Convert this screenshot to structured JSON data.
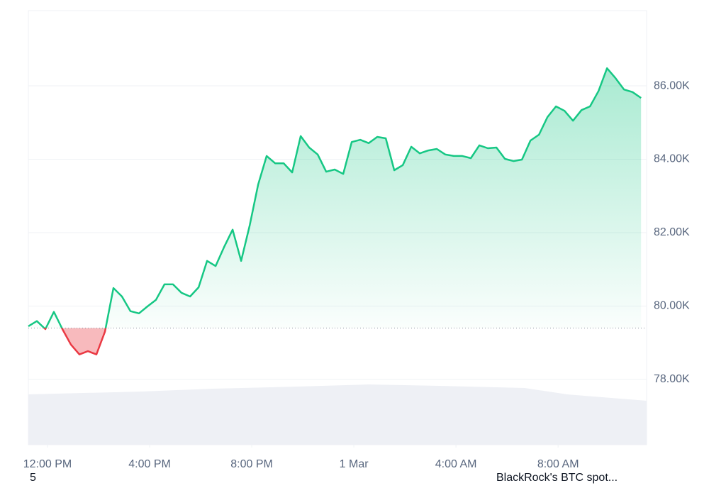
{
  "chart_data": {
    "type": "line",
    "x": [
      675,
      695,
      715,
      735,
      755,
      775,
      795,
      815,
      835,
      855,
      875,
      895,
      915,
      935,
      955,
      975,
      995,
      1015,
      1035,
      1055,
      1075,
      1095,
      1115,
      1135,
      1155,
      1175,
      1195,
      1215,
      1235,
      1255,
      1275,
      1295,
      1315,
      1335,
      1355,
      1375,
      1395,
      1415,
      1435,
      1455,
      1475,
      1495,
      1515,
      1535,
      1555,
      1575,
      1595,
      1615,
      1635,
      1655,
      1675,
      1695,
      1715,
      1735,
      1755,
      1775,
      1795,
      1815,
      1835,
      1855,
      1875,
      1895,
      1915,
      1935,
      1955,
      1975,
      1995,
      2015,
      2035,
      2055,
      2075,
      2095,
      2115
    ],
    "values": [
      79450,
      79590,
      79370,
      79840,
      79370,
      78950,
      78680,
      78770,
      78680,
      79300,
      80490,
      80260,
      79860,
      79800,
      79990,
      80170,
      80590,
      80590,
      80360,
      80260,
      80510,
      81230,
      81090,
      81610,
      82080,
      81230,
      82190,
      83310,
      84090,
      83890,
      83890,
      83640,
      84630,
      84320,
      84130,
      83660,
      83720,
      83600,
      84470,
      84530,
      84440,
      84610,
      84570,
      83700,
      83840,
      84340,
      84160,
      84240,
      84280,
      84130,
      84090,
      84090,
      84030,
      84380,
      84300,
      84320,
      84010,
      83950,
      83990,
      84510,
      84670,
      85150,
      85440,
      85320,
      85050,
      85340,
      85440,
      85860,
      86480,
      86210,
      85900,
      85830,
      85670
    ],
    "baseline": 79400,
    "color_up": "#16c784",
    "color_down": "#ea3943",
    "xlim": [
      675,
      2128
    ],
    "xticks": [
      {
        "value": 720,
        "label": "12:00 PM"
      },
      {
        "value": 960,
        "label": "4:00 PM"
      },
      {
        "value": 1200,
        "label": "8:00 PM"
      },
      {
        "value": 1440,
        "label": "1 Mar"
      },
      {
        "value": 1680,
        "label": "4:00 AM"
      },
      {
        "value": 1920,
        "label": "8:00 AM"
      }
    ],
    "ylim": [
      76220,
      88050
    ],
    "yticks": [
      {
        "value": 78000,
        "label": "78.00K"
      },
      {
        "value": 80000,
        "label": "80.00K"
      },
      {
        "value": 82000,
        "label": "82.00K"
      },
      {
        "value": 84000,
        "label": "84.00K"
      },
      {
        "value": 86000,
        "label": "86.00K"
      }
    ],
    "grid": true
  },
  "footer": {
    "left": "5",
    "right": "BlackRock's BTC spot..."
  }
}
